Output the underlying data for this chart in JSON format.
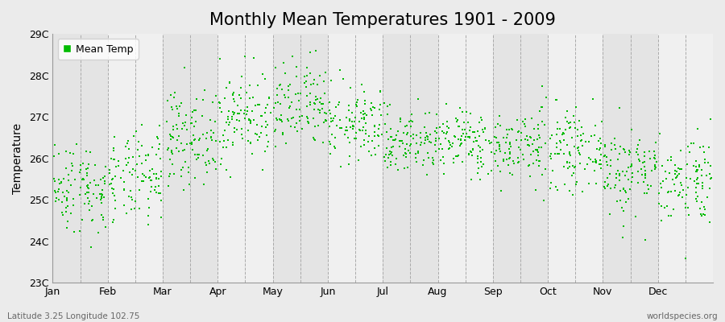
{
  "title": "Monthly Mean Temperatures 1901 - 2009",
  "ylabel": "Temperature",
  "xlabel": "",
  "ylim": [
    23,
    29
  ],
  "ytick_labels": [
    "23C",
    "24C",
    "25C",
    "26C",
    "27C",
    "28C",
    "29C"
  ],
  "ytick_values": [
    23,
    24,
    25,
    26,
    27,
    28,
    29
  ],
  "month_labels": [
    "Jan",
    "Feb",
    "Mar",
    "Apr",
    "May",
    "Jun",
    "Jul",
    "Aug",
    "Sep",
    "Oct",
    "Nov",
    "Dec"
  ],
  "legend_label": "Mean Temp",
  "dot_color": "#00BB00",
  "bg_color": "#ebebeb",
  "band_color_odd": "#e4e4e4",
  "band_color_even": "#f0f0f0",
  "subtitle_left": "Latitude 3.25 Longitude 102.75",
  "subtitle_right": "worldspecies.org",
  "title_fontsize": 15,
  "axis_fontsize": 10,
  "label_fontsize": 9,
  "n_years": 109,
  "monthly_means": [
    25.3,
    25.5,
    26.5,
    27.0,
    27.2,
    26.8,
    26.4,
    26.4,
    26.3,
    26.2,
    25.7,
    25.5
  ],
  "monthly_stds": [
    0.55,
    0.55,
    0.55,
    0.55,
    0.55,
    0.45,
    0.4,
    0.4,
    0.45,
    0.45,
    0.55,
    0.55
  ],
  "seed": 42,
  "dashed_line_positions": [
    0.5,
    1.0,
    1.5,
    2.0,
    2.5,
    3.0,
    3.5,
    4.0,
    4.5,
    5.0,
    5.5,
    6.0,
    6.5,
    7.0,
    7.5,
    8.0,
    8.5,
    9.0,
    9.5,
    10.0,
    10.5,
    11.0,
    11.5
  ]
}
